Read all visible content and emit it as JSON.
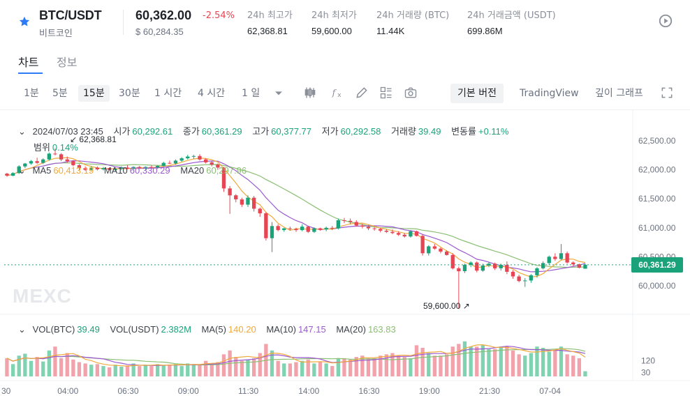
{
  "header": {
    "pair": "BTC/USDT",
    "pair_sub": "비트코인",
    "last_price": "60,362.00",
    "change_pct": "-2.54%",
    "usd_price": "$ 60,284.35",
    "stats": [
      {
        "label": "24h 최고가",
        "value": "62,368.81"
      },
      {
        "label": "24h 최저가",
        "value": "59,600.00"
      },
      {
        "label": "24h 거래량 (BTC)",
        "value": "11.44K"
      },
      {
        "label": "24h 거래금액 (USDT)",
        "value": "699.86M"
      }
    ]
  },
  "tabs": [
    {
      "label": "차트",
      "active": true
    },
    {
      "label": "정보",
      "active": false
    }
  ],
  "toolbar": {
    "timeframes": [
      {
        "label": "1분",
        "active": false
      },
      {
        "label": "5분",
        "active": false
      },
      {
        "label": "15분",
        "active": true
      },
      {
        "label": "30분",
        "active": false
      },
      {
        "label": "1 시간",
        "active": false
      },
      {
        "label": "4 시간",
        "active": false
      },
      {
        "label": "1 일",
        "active": false
      }
    ],
    "icons": [
      "chevron-down-icon",
      "candlestick-icon",
      "fx-icon",
      "pen-icon",
      "layout-icon",
      "camera-icon",
      "fullscreen-icon"
    ],
    "views": [
      {
        "label": "기본 버전",
        "active": true
      },
      {
        "label": "TradingView",
        "active": false
      },
      {
        "label": "깊이 그래프",
        "active": false
      }
    ]
  },
  "legend": {
    "datetime": "2024/07/03 23:45",
    "open_label": "시가",
    "open": "60,292.61",
    "close_label": "종가",
    "close": "60,361.29",
    "high_label": "고가",
    "high": "60,377.77",
    "low_label": "저가",
    "low": "60,292.58",
    "vol_label": "거래량",
    "vol": "39.49",
    "change_label": "변동률",
    "change": "+0.11%",
    "range_label": "범위",
    "range": "0.14%",
    "ma5_label": "MA5",
    "ma5": "60,413.19",
    "ma10_label": "MA10",
    "ma10": "60,330.29",
    "ma20_label": "MA20",
    "ma20": "60,297.96"
  },
  "vol_legend": {
    "vol_btc_label": "VOL(BTC)",
    "vol_btc": "39.49",
    "vol_usdt_label": "VOL(USDT)",
    "vol_usdt": "2.382M",
    "ma5_label": "MA(5)",
    "ma5": "140.20",
    "ma10_label": "MA(10)",
    "ma10": "147.15",
    "ma20_label": "MA(20)",
    "ma20": "163.83"
  },
  "annotations": {
    "high_marker": "62,368.81",
    "low_marker": "59,600.00",
    "current_price_tag": "60,361.29",
    "watermark": "MEXC"
  },
  "colors": {
    "up": "#1aa37a",
    "down": "#e64553",
    "ma5": "#f2a93b",
    "ma10": "#9b59d0",
    "ma20": "#8bbf73",
    "accent": "#2f7bf5"
  },
  "chart_data": {
    "type": "candlestick",
    "interval": "15m",
    "price_axis_ticks": [
      "62,500.00",
      "62,000.00",
      "61,500.00",
      "61,000.00",
      "60,500.00",
      "60,000.00"
    ],
    "volume_axis_ticks": [
      "120",
      "30"
    ],
    "time_axis_ticks": [
      "30",
      "04:00",
      "06:30",
      "09:00",
      "11:30",
      "14:00",
      "16:30",
      "19:00",
      "21:30",
      "07-04"
    ],
    "price_ylim": [
      59600,
      62600
    ],
    "volume_ylim": [
      0,
      290
    ],
    "candles": [
      [
        61935,
        61950,
        61880,
        61900,
        140
      ],
      [
        61900,
        61960,
        61890,
        61945,
        95
      ],
      [
        61945,
        62080,
        61930,
        62060,
        160
      ],
      [
        62060,
        62120,
        62030,
        62110,
        175
      ],
      [
        62110,
        62170,
        62090,
        62150,
        120
      ],
      [
        62150,
        62210,
        62100,
        62120,
        150
      ],
      [
        62120,
        62200,
        62100,
        62180,
        115
      ],
      [
        62180,
        62300,
        62160,
        62280,
        200
      ],
      [
        62280,
        62369,
        62250,
        62270,
        230
      ],
      [
        62270,
        62290,
        62150,
        62180,
        140
      ],
      [
        62180,
        62230,
        62120,
        62150,
        180
      ],
      [
        62150,
        62170,
        62060,
        62080,
        130
      ],
      [
        62080,
        62100,
        62000,
        62030,
        110
      ],
      [
        62030,
        62060,
        61980,
        62000,
        100
      ],
      [
        62000,
        62060,
        61990,
        62040,
        90
      ],
      [
        62040,
        62060,
        61990,
        62010,
        95
      ],
      [
        62010,
        62050,
        61990,
        62030,
        80
      ],
      [
        62030,
        62040,
        61990,
        62000,
        70
      ],
      [
        62000,
        62040,
        61980,
        62020,
        90
      ],
      [
        62020,
        62060,
        62000,
        62040,
        75
      ],
      [
        62040,
        62080,
        62010,
        62020,
        85
      ],
      [
        62020,
        62060,
        62000,
        62050,
        100
      ],
      [
        62050,
        62070,
        62020,
        62030,
        80
      ],
      [
        62030,
        62060,
        62000,
        62050,
        90
      ],
      [
        62050,
        62080,
        62030,
        62040,
        80
      ],
      [
        62040,
        62080,
        62020,
        62070,
        95
      ],
      [
        62070,
        62140,
        62060,
        62120,
        85
      ],
      [
        62120,
        62160,
        62100,
        62110,
        90
      ],
      [
        62110,
        62180,
        62090,
        62160,
        95
      ],
      [
        62160,
        62220,
        62140,
        62200,
        80
      ],
      [
        62200,
        62260,
        62180,
        62230,
        100
      ],
      [
        62230,
        62260,
        62190,
        62240,
        95
      ],
      [
        62240,
        62270,
        62160,
        62180,
        90
      ],
      [
        62180,
        62200,
        62110,
        62130,
        120
      ],
      [
        62130,
        62150,
        62060,
        62090,
        100
      ],
      [
        62090,
        62110,
        62000,
        62040,
        110
      ],
      [
        62040,
        62050,
        61620,
        61680,
        170
      ],
      [
        61680,
        61720,
        61240,
        61560,
        200
      ],
      [
        61560,
        61580,
        61440,
        61490,
        150
      ],
      [
        61490,
        61520,
        61360,
        61400,
        120
      ],
      [
        61400,
        61560,
        61360,
        61520,
        130
      ],
      [
        61520,
        61550,
        61280,
        61330,
        140
      ],
      [
        61330,
        61350,
        61190,
        61250,
        180
      ],
      [
        61250,
        61270,
        60780,
        60820,
        250
      ],
      [
        60820,
        61100,
        60580,
        61030,
        200
      ],
      [
        61030,
        61060,
        60940,
        60960,
        120
      ],
      [
        60960,
        61000,
        60930,
        60990,
        100
      ],
      [
        60990,
        61020,
        60950,
        60980,
        100
      ],
      [
        60980,
        61000,
        60930,
        60960,
        110
      ],
      [
        60960,
        61060,
        60940,
        61020,
        120
      ],
      [
        61020,
        61030,
        60910,
        60930,
        130
      ],
      [
        60930,
        61010,
        60910,
        60990,
        100
      ],
      [
        60990,
        61000,
        60950,
        60970,
        110
      ],
      [
        60970,
        61020,
        60940,
        61000,
        100
      ],
      [
        61000,
        61030,
        60960,
        60990,
        80
      ],
      [
        60990,
        61160,
        60970,
        61130,
        140
      ],
      [
        61130,
        61170,
        61080,
        61120,
        140
      ],
      [
        61120,
        61160,
        61060,
        61100,
        130
      ],
      [
        61100,
        61130,
        61020,
        61040,
        150
      ],
      [
        61040,
        61070,
        60990,
        61020,
        160
      ],
      [
        61020,
        61050,
        60960,
        60990,
        140
      ],
      [
        60990,
        61010,
        60950,
        60980,
        140
      ],
      [
        60980,
        61000,
        60920,
        60950,
        160
      ],
      [
        60950,
        60980,
        60910,
        60930,
        170
      ],
      [
        60930,
        60970,
        60890,
        60910,
        180
      ],
      [
        60910,
        60940,
        60860,
        60880,
        160
      ],
      [
        60880,
        60910,
        60830,
        60850,
        150
      ],
      [
        60850,
        60960,
        60830,
        60940,
        140
      ],
      [
        60940,
        60950,
        60850,
        60860,
        240
      ],
      [
        60860,
        60890,
        60520,
        60560,
        220
      ],
      [
        60560,
        60700,
        60520,
        60680,
        180
      ],
      [
        60680,
        60720,
        60620,
        60640,
        160
      ],
      [
        60640,
        60660,
        60560,
        60590,
        160
      ],
      [
        60590,
        60610,
        60520,
        60530,
        170
      ],
      [
        60530,
        60560,
        60280,
        60300,
        230
      ],
      [
        60300,
        60330,
        59600,
        60250,
        250
      ],
      [
        60250,
        60380,
        60220,
        60360,
        270
      ],
      [
        60360,
        60420,
        60320,
        60400,
        230
      ],
      [
        60400,
        60420,
        60230,
        60260,
        230
      ],
      [
        60260,
        60380,
        60240,
        60350,
        240
      ],
      [
        60350,
        60410,
        60320,
        60380,
        210
      ],
      [
        60380,
        60400,
        60270,
        60300,
        210
      ],
      [
        60300,
        60380,
        60260,
        60360,
        230
      ],
      [
        60360,
        60420,
        60200,
        60240,
        230
      ],
      [
        60240,
        60270,
        60120,
        60160,
        200
      ],
      [
        60160,
        60190,
        60060,
        60080,
        170
      ],
      [
        60080,
        60130,
        59980,
        60090,
        160
      ],
      [
        60090,
        60200,
        60050,
        60180,
        180
      ],
      [
        60180,
        60320,
        60140,
        60300,
        230
      ],
      [
        60300,
        60420,
        60280,
        60390,
        220
      ],
      [
        60390,
        60520,
        60360,
        60500,
        190
      ],
      [
        60500,
        60560,
        60430,
        60460,
        200
      ],
      [
        60460,
        60720,
        60440,
        60560,
        230
      ],
      [
        60560,
        60590,
        60380,
        60400,
        170
      ],
      [
        60400,
        60420,
        60340,
        60370,
        160
      ],
      [
        60370,
        60380,
        60300,
        60310,
        140
      ],
      [
        60292.61,
        60377.77,
        60292.58,
        60361.29,
        39.49
      ]
    ]
  }
}
